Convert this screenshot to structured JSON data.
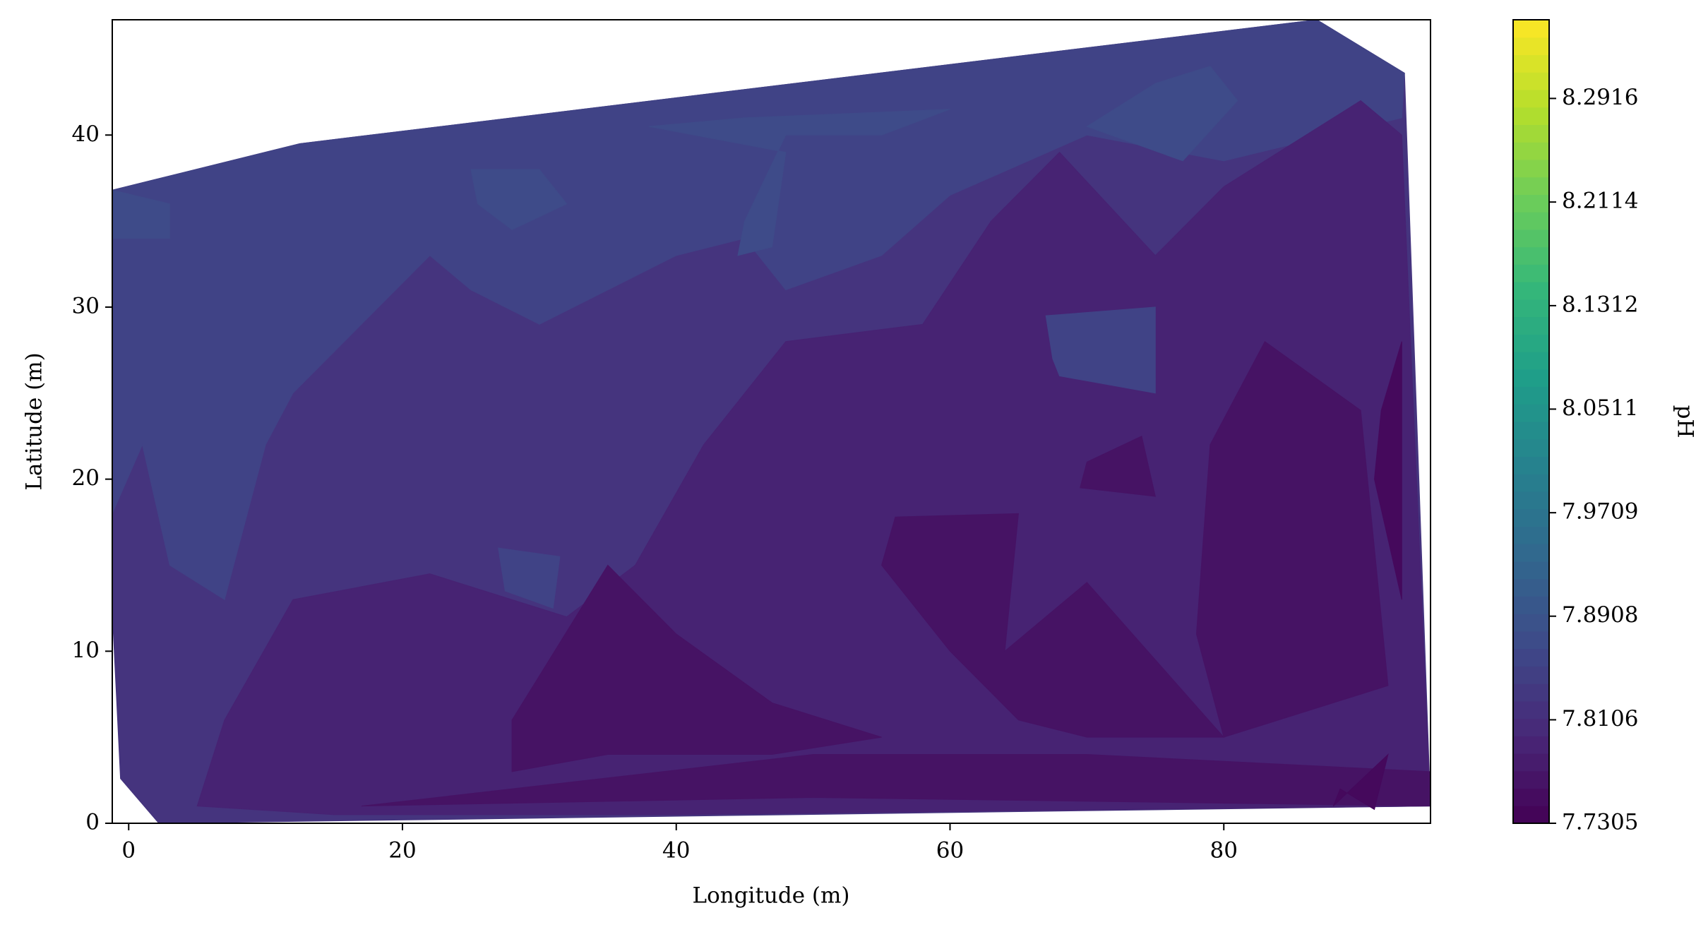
{
  "chart_data": {
    "type": "contour",
    "xlabel": "Longitude (m)",
    "ylabel": "Latitude (m)",
    "colorbar_label": "pH",
    "colormap": "viridis",
    "xlim": [
      -1.2,
      95.1
    ],
    "xticks": [
      0,
      20,
      40,
      60,
      80
    ],
    "ylim": [
      0,
      46.7
    ],
    "yticks": [
      0,
      10,
      20,
      30,
      40
    ],
    "clim": [
      7.7305,
      8.3525
    ],
    "cticks": [
      7.7305,
      7.8106,
      7.8908,
      7.9709,
      8.0511,
      8.1312,
      8.2114,
      8.2916
    ],
    "regions": [
      {
        "value": 7.823,
        "polygon": [
          [
            -1.2,
            36.8
          ],
          [
            12.5,
            39.5
          ],
          [
            86.8,
            46.7
          ],
          [
            93.2,
            43.6
          ],
          [
            95.1,
            1
          ],
          [
            2.2,
            0
          ],
          [
            -0.6,
            2.6
          ],
          [
            -1.2,
            12.3
          ]
        ]
      },
      {
        "value": 7.855,
        "polygon": [
          [
            -1.2,
            36.8
          ],
          [
            12.5,
            39.5
          ],
          [
            86.8,
            46.7
          ],
          [
            93.2,
            43.6
          ],
          [
            93,
            41
          ],
          [
            80,
            38.5
          ],
          [
            70,
            40
          ],
          [
            60,
            36.5
          ],
          [
            55,
            33
          ],
          [
            48,
            31
          ],
          [
            45,
            34
          ],
          [
            40,
            33
          ],
          [
            30,
            29
          ],
          [
            25,
            31
          ],
          [
            22,
            33
          ],
          [
            17,
            29
          ],
          [
            12,
            25
          ],
          [
            10,
            22
          ],
          [
            7,
            13
          ],
          [
            3,
            15
          ],
          [
            1,
            22
          ],
          [
            -1.2,
            18
          ]
        ]
      },
      {
        "value": 7.87,
        "polygon": [
          [
            -1.2,
            36.8
          ],
          [
            3,
            36
          ],
          [
            3,
            34
          ],
          [
            -1.2,
            34
          ]
        ]
      },
      {
        "value": 7.87,
        "polygon": [
          [
            25,
            38
          ],
          [
            30,
            38
          ],
          [
            32,
            36
          ],
          [
            28,
            34.5
          ],
          [
            25.5,
            36
          ]
        ]
      },
      {
        "value": 7.87,
        "polygon": [
          [
            38,
            40.5
          ],
          [
            45,
            41
          ],
          [
            60,
            41.5
          ],
          [
            55,
            40
          ],
          [
            48,
            40
          ],
          [
            45,
            35
          ],
          [
            44.5,
            33
          ],
          [
            47,
            33.5
          ],
          [
            48,
            39
          ]
        ]
      },
      {
        "value": 7.87,
        "polygon": [
          [
            75,
            43
          ],
          [
            79,
            44
          ],
          [
            81,
            42
          ],
          [
            77,
            38.5
          ],
          [
            70,
            40.5
          ]
        ]
      },
      {
        "value": 7.79,
        "polygon": [
          [
            5,
            1
          ],
          [
            7,
            6
          ],
          [
            12,
            13
          ],
          [
            22,
            14.5
          ],
          [
            32,
            12
          ],
          [
            37,
            15
          ],
          [
            42,
            22
          ],
          [
            48,
            28
          ],
          [
            58,
            29
          ],
          [
            63,
            35
          ],
          [
            68,
            39
          ],
          [
            75,
            33
          ],
          [
            80,
            37
          ],
          [
            90,
            42
          ],
          [
            93,
            40
          ],
          [
            95.1,
            1
          ],
          [
            40,
            0.5
          ],
          [
            15,
            0.5
          ]
        ]
      },
      {
        "value": 7.855,
        "polygon": [
          [
            67,
            29.5
          ],
          [
            75,
            30
          ],
          [
            75,
            25
          ],
          [
            68,
            26
          ],
          [
            67.5,
            27
          ]
        ]
      },
      {
        "value": 7.855,
        "polygon": [
          [
            27,
            16
          ],
          [
            31.5,
            15.5
          ],
          [
            31,
            12.5
          ],
          [
            27.5,
            13.5
          ]
        ]
      },
      {
        "value": 7.762,
        "polygon": [
          [
            28,
            6
          ],
          [
            35,
            15
          ],
          [
            40,
            11
          ],
          [
            47,
            7
          ],
          [
            55,
            5
          ],
          [
            47,
            4
          ],
          [
            35,
            4
          ],
          [
            28,
            3
          ]
        ]
      },
      {
        "value": 7.762,
        "polygon": [
          [
            56,
            17.8
          ],
          [
            65,
            18
          ],
          [
            64,
            10
          ],
          [
            70,
            14
          ],
          [
            80,
            5
          ],
          [
            70,
            5
          ],
          [
            65,
            6
          ],
          [
            60,
            10
          ],
          [
            55,
            15
          ]
        ]
      },
      {
        "value": 7.762,
        "polygon": [
          [
            79,
            22
          ],
          [
            83,
            28
          ],
          [
            90,
            24
          ],
          [
            92,
            8
          ],
          [
            80,
            5
          ],
          [
            78,
            11
          ]
        ]
      },
      {
        "value": 7.762,
        "polygon": [
          [
            17,
            1
          ],
          [
            50,
            1.5
          ],
          [
            95.1,
            1
          ],
          [
            95.1,
            3
          ],
          [
            70,
            4
          ],
          [
            50,
            4
          ]
        ]
      },
      {
        "value": 7.762,
        "polygon": [
          [
            70,
            21
          ],
          [
            74,
            22.5
          ],
          [
            75,
            19
          ],
          [
            69.5,
            19.5
          ]
        ]
      },
      {
        "value": 7.745,
        "polygon": [
          [
            91,
            20
          ],
          [
            93,
            13
          ],
          [
            93,
            28
          ],
          [
            91.5,
            24
          ]
        ]
      },
      {
        "value": 7.745,
        "polygon": [
          [
            88,
            1
          ],
          [
            92,
            4
          ],
          [
            91,
            0.8
          ],
          [
            88.5,
            2
          ]
        ]
      }
    ]
  }
}
